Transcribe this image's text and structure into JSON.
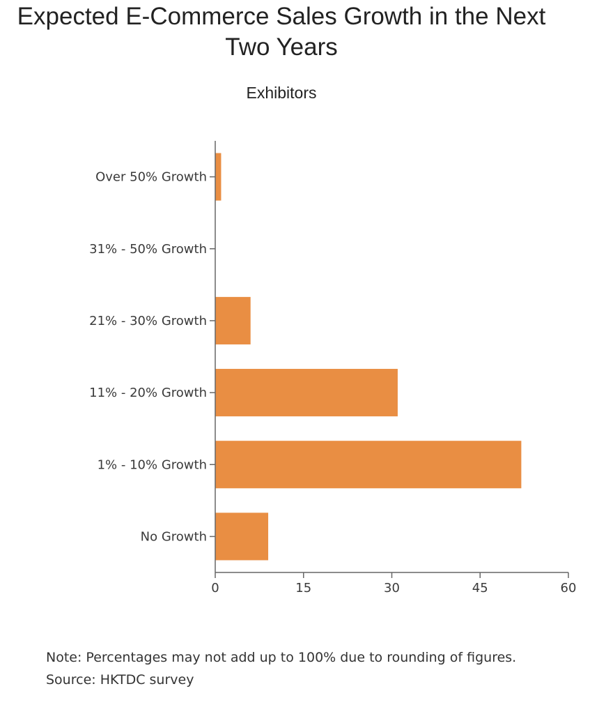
{
  "title": "Expected E-Commerce Sales Growth in the Next Two Years",
  "subtitle": "Exhibitors",
  "note": "Note: Percentages may not add up to 100% due to rounding of figures.",
  "source": "Source: HKTDC survey",
  "colors": {
    "bar": "#e98e43",
    "axis": "#666666"
  },
  "chart_data": {
    "type": "bar",
    "orientation": "horizontal",
    "categories": [
      "Over 50% Growth",
      "31% - 50% Growth",
      "21% - 30% Growth",
      "11% - 20% Growth",
      "1% - 10% Growth",
      "No Growth"
    ],
    "values": [
      1,
      0,
      6,
      31,
      52,
      9
    ],
    "title": "Expected E-Commerce Sales Growth in the Next Two Years",
    "subtitle": "Exhibitors",
    "xlim": [
      0,
      60
    ],
    "xticks": [
      0,
      15,
      30,
      45,
      60
    ],
    "grid": false,
    "legend": "none"
  }
}
